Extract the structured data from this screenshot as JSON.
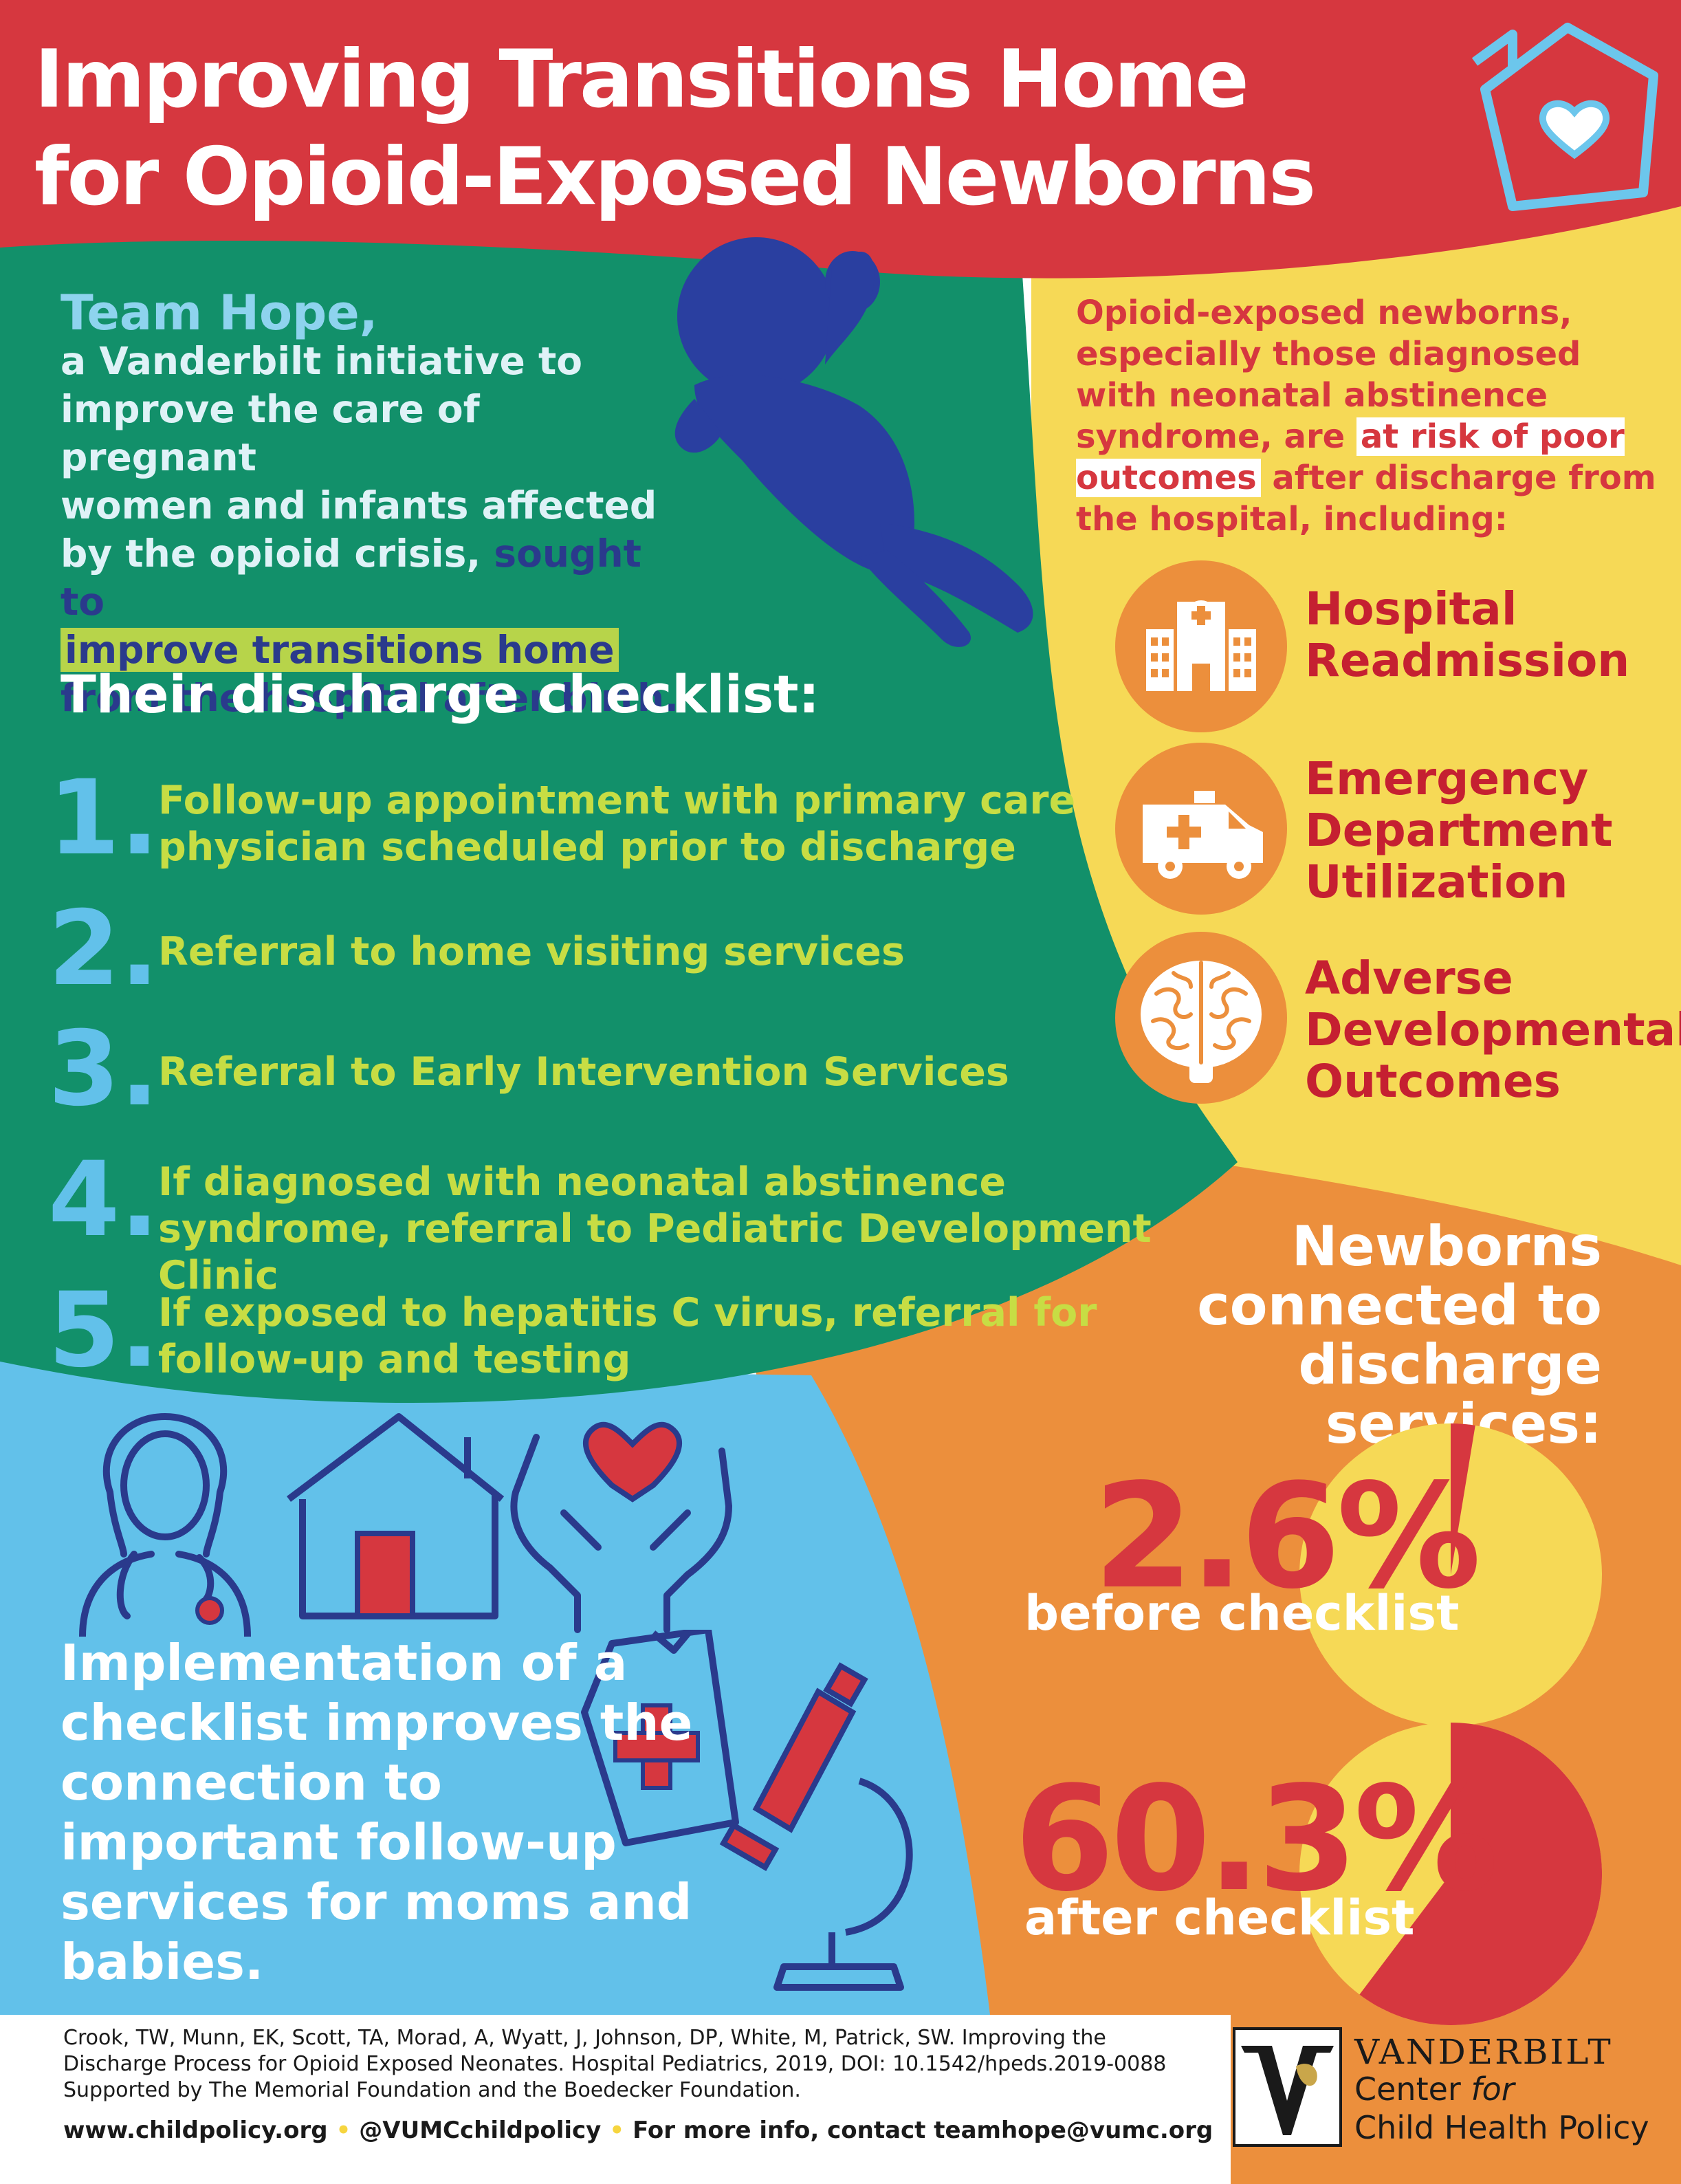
{
  "header": {
    "title_line1": "Improving Transitions Home",
    "title_line2": "for Opioid-Exposed Newborns"
  },
  "intro": {
    "team": "Team Hope,",
    "line1": "a Vanderbilt initiative to",
    "line2": "improve the care of pregnant",
    "line3": "women and infants affected",
    "line4": "by the opioid crisis,",
    "highlight_part1": "sought to",
    "highlight_marked": "improve transitions home",
    "highlight_part2": "from the hospital after birth."
  },
  "checklist": {
    "heading": "Their discharge checklist:",
    "items": [
      {
        "num": "1.",
        "text": "Follow-up appointment with primary care physician scheduled prior to discharge"
      },
      {
        "num": "2.",
        "text": "Referral to home visiting services"
      },
      {
        "num": "3.",
        "text": "Referral to Early Intervention Services"
      },
      {
        "num": "4.",
        "text": "If diagnosed with neonatal abstinence syndrome, referral to Pediatric Development Clinic"
      },
      {
        "num": "5.",
        "text": "If exposed to hepatitis C virus, referral for follow-up and testing"
      }
    ]
  },
  "risk": {
    "intro_a": "Opioid-exposed newborns, especially those diagnosed with neonatal abstinence syndrome, are",
    "intro_mark": "at risk of poor outcomes",
    "intro_b": "after discharge from the hospital, including:",
    "outcomes": [
      {
        "line1": "Hospital",
        "line2": "Readmission",
        "line3": "",
        "icon": "hospital-icon"
      },
      {
        "line1": "Emergency",
        "line2": "Department",
        "line3": "Utilization",
        "icon": "ambulance-icon"
      },
      {
        "line1": "Adverse",
        "line2": "Developmental",
        "line3": "Outcomes",
        "icon": "brain-icon"
      }
    ]
  },
  "stats": {
    "heading_line1": "Newborns",
    "heading_line2": "connected to",
    "heading_line3": "discharge services:",
    "before_value": "2.6%",
    "before_label": "before checklist",
    "before_fraction": 0.026,
    "after_value": "60.3%",
    "after_label": "after checklist",
    "after_fraction": 0.603
  },
  "implementation": {
    "text": "Implementation of a checklist improves the connection to important follow-up services for moms and babies."
  },
  "citation": {
    "line1": "Crook, TW, Munn, EK, Scott, TA, Morad, A, Wyatt, J, Johnson, DP, White, M, Patrick, SW. Improving the",
    "line2": "Discharge Process for Opioid Exposed Neonates. Hospital Pediatrics, 2019, DOI: 10.1542/hpeds.2019-0088",
    "line3": "Supported by The Memorial Foundation and the Boedecker Foundation."
  },
  "footer": {
    "website": "www.childpolicy.org",
    "social": "@VUMCchildpolicy",
    "contact": "For more info, contact teamhope@vumc.org"
  },
  "logo": {
    "name": "VANDERBILT",
    "sub_line1_a": "Center ",
    "sub_line1_b": "for",
    "sub_line2": "Child Health Policy"
  },
  "colors": {
    "red": "#d6373f",
    "green": "#12906a",
    "yellow": "#f6d956",
    "orange": "#ec8f3c",
    "blue": "#62c1ea",
    "navy": "#2a3a8c"
  }
}
